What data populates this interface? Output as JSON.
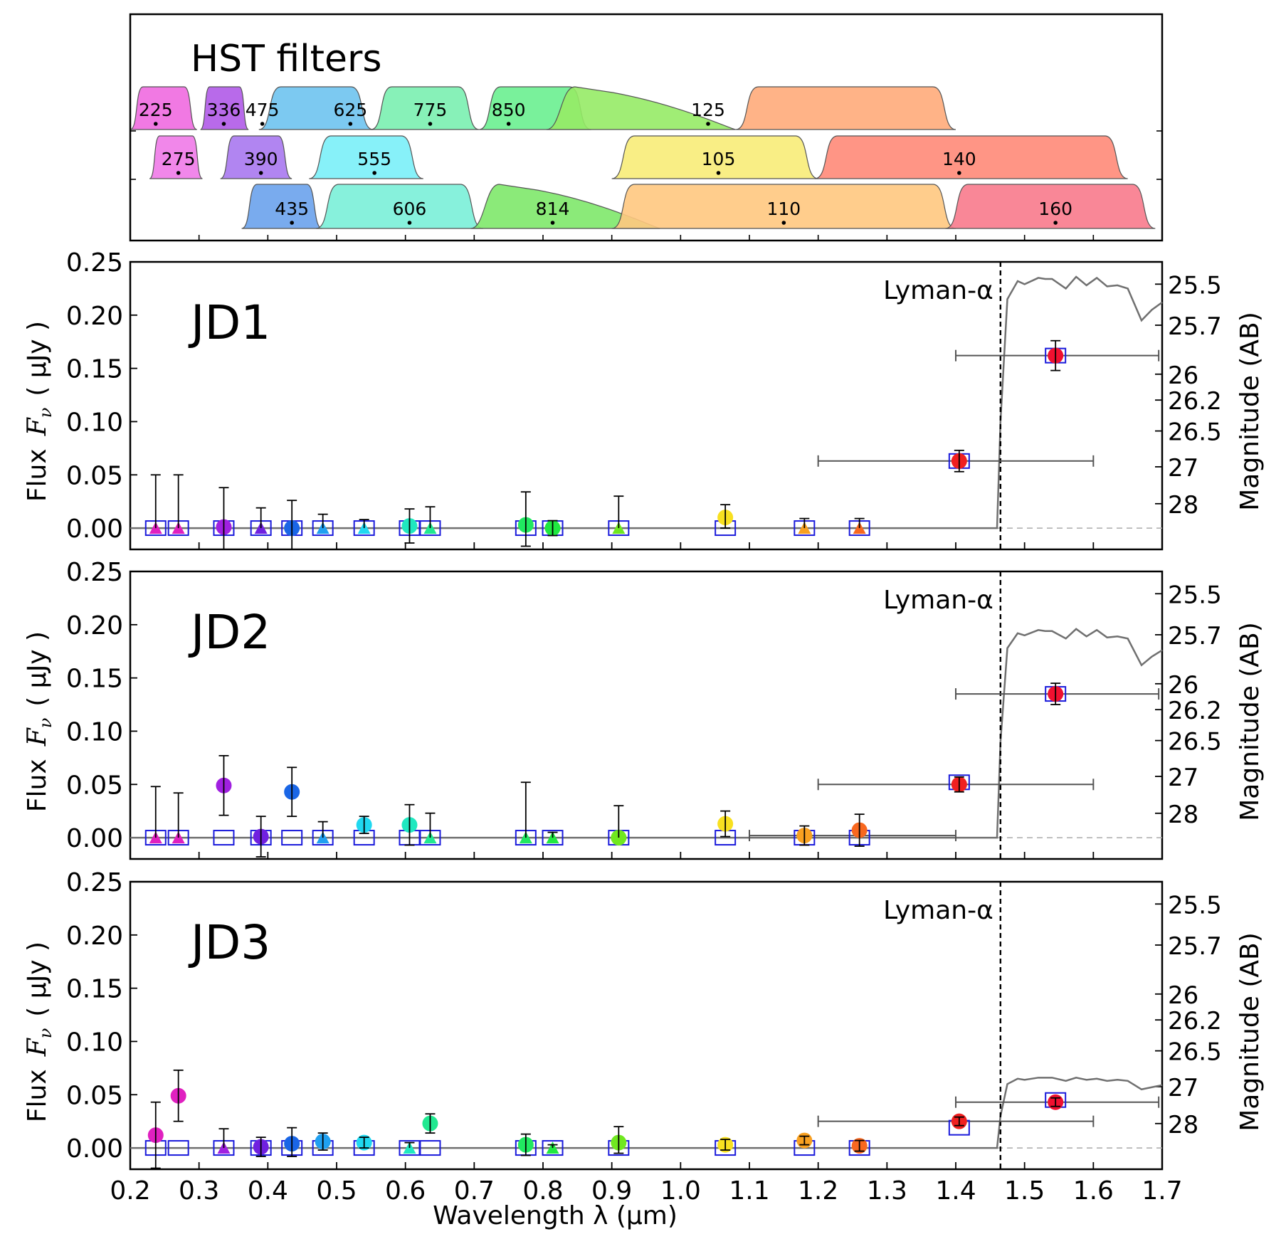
{
  "figure": {
    "filters_title": "HST filters",
    "x_axis_label": "Wavelength  λ (μm)",
    "y_axis_label": "Flux  Fν  ( μJy )",
    "y_axis_label_parts": [
      "Flux",
      "F",
      "ν",
      "( μJy )"
    ],
    "y2_axis_label": "Magnitude (AB)",
    "lyman_label": "Lyman-α",
    "colors": {
      "frame": "#000000",
      "model": "#707070",
      "box": "#1a1adb",
      "errbar": "#000000",
      "hbar": "#555555"
    }
  },
  "chart_data": [
    {
      "type": "area",
      "title": "HST filters",
      "xlim": [
        0.2,
        1.7
      ],
      "rows": [
        [
          {
            "name": "225",
            "center": 0.237,
            "lo": 0.2,
            "hi": 0.297,
            "color": "#f06ae0"
          },
          {
            "name": "336",
            "center": 0.336,
            "lo": 0.302,
            "hi": 0.372,
            "color": "#b05ae8"
          },
          {
            "name": "475",
            "center": 0.392,
            "lo": 0.387,
            "hi": 0.553,
            "color": "#6ec3f0"
          },
          {
            "name": "625",
            "center": 0.52,
            "lo": 0.55,
            "hi": 0.707,
            "color": "#7af0b0"
          },
          {
            "name": "775",
            "center": 0.636,
            "lo": 0.707,
            "hi": 0.87,
            "color": "#6af090"
          },
          {
            "name": "850",
            "center": 0.75,
            "lo": 0.805,
            "hi": 1.08,
            "color": "#96eb66"
          },
          {
            "name": "125",
            "center": 1.04,
            "lo": 1.08,
            "hi": 1.4,
            "color": "#ffab7a"
          }
        ],
        [
          {
            "name": "275",
            "center": 0.27,
            "lo": 0.228,
            "hi": 0.305,
            "color": "#f07ae8"
          },
          {
            "name": "390",
            "center": 0.39,
            "lo": 0.331,
            "hi": 0.435,
            "color": "#a878f0"
          },
          {
            "name": "555",
            "center": 0.555,
            "lo": 0.46,
            "hi": 0.626,
            "color": "#7af0f8"
          },
          {
            "name": "105",
            "center": 1.055,
            "lo": 0.9,
            "hi": 1.2,
            "color": "#f8ec78"
          },
          {
            "name": "140",
            "center": 1.405,
            "lo": 1.195,
            "hi": 1.65,
            "color": "#ff8a78"
          }
        ],
        [
          {
            "name": "435",
            "center": 0.435,
            "lo": 0.362,
            "hi": 0.479,
            "color": "#6aa2ec"
          },
          {
            "name": "606",
            "center": 0.606,
            "lo": 0.47,
            "hi": 0.713,
            "color": "#7af0d8"
          },
          {
            "name": "814",
            "center": 0.814,
            "lo": 0.695,
            "hi": 0.97,
            "color": "#7ee86a"
          },
          {
            "name": "110",
            "center": 1.15,
            "lo": 0.9,
            "hi": 1.4,
            "color": "#ffc880"
          },
          {
            "name": "160",
            "center": 1.545,
            "lo": 1.385,
            "hi": 1.69,
            "color": "#f87a8c"
          }
        ]
      ]
    },
    {
      "type": "scatter",
      "title": "JD1",
      "xlabel": "Wavelength λ (μm)",
      "ylabel": "Flux Fν (μJy)",
      "y2label": "Magnitude (AB)",
      "xlim": [
        0.2,
        1.7
      ],
      "ylim": [
        -0.02,
        0.25
      ],
      "yticks": [
        "0.00",
        "0.05",
        "0.10",
        "0.15",
        "0.20",
        "0.25"
      ],
      "y2ticks": [
        "25.5",
        "25.7",
        "26",
        "26.2",
        "26.5",
        "27",
        "28"
      ],
      "lyman_alpha_um": 1.465,
      "model_sed": {
        "x": [
          0.2,
          1.46,
          1.465,
          1.475,
          1.49,
          1.5,
          1.52,
          1.53,
          1.54,
          1.56,
          1.575,
          1.59,
          1.605,
          1.62,
          1.635,
          1.65,
          1.67,
          1.685,
          1.7
        ],
        "y": [
          0.0,
          0.0,
          0.1,
          0.215,
          0.232,
          0.229,
          0.235,
          0.234,
          0.234,
          0.225,
          0.236,
          0.228,
          0.235,
          0.227,
          0.228,
          0.225,
          0.195,
          0.205,
          0.212
        ]
      },
      "observations": [
        {
          "x": 0.237,
          "y": 0.0,
          "err_hi": 0.05,
          "err_lo": 0.0,
          "marker": "triangle",
          "color": "#e020c0",
          "box_y": 0.0
        },
        {
          "x": 0.27,
          "y": 0.0,
          "err_hi": 0.05,
          "err_lo": 0.0,
          "marker": "triangle",
          "color": "#e020c0",
          "box_y": 0.0
        },
        {
          "x": 0.336,
          "y": 0.001,
          "err_hi": 0.037,
          "err_lo": 0.021,
          "marker": "circle",
          "color": "#a020e0",
          "box_y": 0.0
        },
        {
          "x": 0.39,
          "y": 0.0,
          "err_hi": 0.019,
          "err_lo": 0.0,
          "marker": "triangle",
          "color": "#7020e0",
          "box_y": 0.0
        },
        {
          "x": 0.435,
          "y": 0.0,
          "err_hi": 0.026,
          "err_lo": 0.02,
          "marker": "circle",
          "color": "#1a66e6",
          "box_y": 0.0
        },
        {
          "x": 0.48,
          "y": 0.0,
          "err_hi": 0.013,
          "err_lo": 0.0,
          "marker": "triangle",
          "color": "#20a0f0",
          "box_y": 0.0
        },
        {
          "x": 0.54,
          "y": 0.0,
          "err_hi": 0.008,
          "err_lo": 0.0,
          "marker": "triangle",
          "color": "#20d8f0",
          "box_y": 0.0
        },
        {
          "x": 0.606,
          "y": 0.002,
          "err_hi": 0.016,
          "err_lo": 0.016,
          "marker": "circle",
          "color": "#20e8c0",
          "box_y": 0.0
        },
        {
          "x": 0.636,
          "y": 0.0,
          "err_hi": 0.02,
          "err_lo": 0.0,
          "marker": "triangle",
          "color": "#20e890",
          "box_y": 0.0
        },
        {
          "x": 0.775,
          "y": 0.003,
          "err_hi": 0.031,
          "err_lo": 0.02,
          "marker": "circle",
          "color": "#20e860",
          "box_y": 0.0
        },
        {
          "x": 0.814,
          "y": 0.0,
          "err_hi": 0.007,
          "err_lo": 0.007,
          "marker": "circle",
          "color": "#20e840",
          "box_y": 0.0
        },
        {
          "x": 0.91,
          "y": 0.0,
          "err_hi": 0.03,
          "err_lo": 0.0,
          "marker": "triangle",
          "color": "#70e820",
          "box_y": 0.0
        },
        {
          "x": 1.065,
          "y": 0.01,
          "err_hi": 0.012,
          "err_lo": 0.01,
          "marker": "circle",
          "color": "#f8e020",
          "box_y": 0.0
        },
        {
          "x": 1.18,
          "y": 0.0,
          "err_hi": 0.009,
          "err_lo": 0.0,
          "marker": "triangle",
          "color": "#f8a020",
          "box_y": 0.0
        },
        {
          "x": 1.26,
          "y": 0.0,
          "err_hi": 0.009,
          "err_lo": 0.0,
          "marker": "triangle",
          "color": "#f86820",
          "box_y": 0.0
        },
        {
          "x": 1.405,
          "y": 0.063,
          "err_hi": 0.01,
          "err_lo": 0.01,
          "marker": "circle",
          "color": "#f02020",
          "box_y": 0.063,
          "xerr_lo": 1.2,
          "xerr_hi": 1.6
        },
        {
          "x": 1.545,
          "y": 0.162,
          "err_hi": 0.014,
          "err_lo": 0.014,
          "marker": "circle",
          "color": "#f01030",
          "box_y": 0.162,
          "xerr_lo": 1.4,
          "xerr_hi": 1.695
        }
      ]
    },
    {
      "type": "scatter",
      "title": "JD2",
      "xlim": [
        0.2,
        1.7
      ],
      "ylim": [
        -0.02,
        0.25
      ],
      "yticks": [
        "0.00",
        "0.05",
        "0.10",
        "0.15",
        "0.20",
        "0.25"
      ],
      "y2ticks": [
        "25.5",
        "25.7",
        "26",
        "26.2",
        "26.5",
        "27",
        "28"
      ],
      "lyman_alpha_um": 1.465,
      "model_sed": {
        "x": [
          0.2,
          1.46,
          1.465,
          1.475,
          1.49,
          1.5,
          1.52,
          1.53,
          1.54,
          1.56,
          1.575,
          1.59,
          1.605,
          1.62,
          1.635,
          1.65,
          1.67,
          1.685,
          1.7
        ],
        "y": [
          0.0,
          0.0,
          0.09,
          0.178,
          0.192,
          0.19,
          0.195,
          0.194,
          0.194,
          0.187,
          0.196,
          0.189,
          0.195,
          0.188,
          0.189,
          0.187,
          0.162,
          0.17,
          0.176
        ]
      },
      "observations": [
        {
          "x": 0.237,
          "y": 0.0,
          "err_hi": 0.048,
          "err_lo": 0.0,
          "marker": "triangle",
          "color": "#e020c0",
          "box_y": 0.0
        },
        {
          "x": 0.27,
          "y": 0.0,
          "err_hi": 0.042,
          "err_lo": 0.0,
          "marker": "triangle",
          "color": "#e020c0",
          "box_y": 0.0
        },
        {
          "x": 0.336,
          "y": 0.049,
          "err_hi": 0.028,
          "err_lo": 0.028,
          "marker": "circle",
          "color": "#a020e0",
          "box_y": 0.0
        },
        {
          "x": 0.39,
          "y": 0.001,
          "err_hi": 0.019,
          "err_lo": 0.019,
          "marker": "circle",
          "color": "#7020e0",
          "box_y": 0.0
        },
        {
          "x": 0.435,
          "y": 0.043,
          "err_hi": 0.023,
          "err_lo": 0.023,
          "marker": "circle",
          "color": "#1a66e6",
          "box_y": 0.0
        },
        {
          "x": 0.48,
          "y": 0.0,
          "err_hi": 0.015,
          "err_lo": 0.0,
          "marker": "triangle",
          "color": "#20a0f0",
          "box_y": 0.0
        },
        {
          "x": 0.54,
          "y": 0.012,
          "err_hi": 0.008,
          "err_lo": 0.008,
          "marker": "circle",
          "color": "#20d8f0",
          "box_y": 0.0
        },
        {
          "x": 0.606,
          "y": 0.012,
          "err_hi": 0.019,
          "err_lo": 0.019,
          "marker": "circle",
          "color": "#20e8c0",
          "box_y": 0.0
        },
        {
          "x": 0.636,
          "y": 0.0,
          "err_hi": 0.023,
          "err_lo": 0.0,
          "marker": "triangle",
          "color": "#20e890",
          "box_y": 0.0
        },
        {
          "x": 0.775,
          "y": 0.0,
          "err_hi": 0.052,
          "err_lo": 0.0,
          "marker": "triangle",
          "color": "#20e860",
          "box_y": 0.0
        },
        {
          "x": 0.814,
          "y": 0.0,
          "err_hi": 0.005,
          "err_lo": 0.0,
          "marker": "triangle",
          "color": "#20e840",
          "box_y": 0.0
        },
        {
          "x": 0.91,
          "y": 0.0,
          "err_hi": 0.03,
          "err_lo": 0.0,
          "marker": "circle",
          "color": "#70e820",
          "box_y": 0.0
        },
        {
          "x": 1.065,
          "y": 0.013,
          "err_hi": 0.012,
          "err_lo": 0.012,
          "marker": "circle",
          "color": "#f8e020",
          "box_y": 0.0
        },
        {
          "x": 1.18,
          "y": 0.002,
          "err_hi": 0.009,
          "err_lo": 0.009,
          "marker": "circle",
          "color": "#f8a020",
          "box_y": 0.0,
          "xerr_lo": 1.1,
          "xerr_hi": 1.4
        },
        {
          "x": 1.26,
          "y": 0.007,
          "err_hi": 0.015,
          "err_lo": 0.015,
          "marker": "circle",
          "color": "#f86820",
          "box_y": 0.0
        },
        {
          "x": 1.405,
          "y": 0.05,
          "err_hi": 0.007,
          "err_lo": 0.007,
          "marker": "circle",
          "color": "#f02020",
          "box_y": 0.052,
          "xerr_lo": 1.2,
          "xerr_hi": 1.6
        },
        {
          "x": 1.545,
          "y": 0.135,
          "err_hi": 0.01,
          "err_lo": 0.01,
          "marker": "circle",
          "color": "#f01030",
          "box_y": 0.135,
          "xerr_lo": 1.4,
          "xerr_hi": 1.695
        }
      ]
    },
    {
      "type": "scatter",
      "title": "JD3",
      "xlim": [
        0.2,
        1.7
      ],
      "ylim": [
        -0.02,
        0.25
      ],
      "xticks": [
        "0.2",
        "0.3",
        "0.4",
        "0.5",
        "0.6",
        "0.7",
        "0.8",
        "0.9",
        "1.0",
        "1.1",
        "1.2",
        "1.3",
        "1.4",
        "1.5",
        "1.6",
        "1.7"
      ],
      "yticks": [
        "0.00",
        "0.05",
        "0.10",
        "0.15",
        "0.20",
        "0.25"
      ],
      "y2ticks": [
        "25.5",
        "25.7",
        "26",
        "26.2",
        "26.5",
        "27",
        "28"
      ],
      "lyman_alpha_um": 1.465,
      "model_sed": {
        "x": [
          0.2,
          1.46,
          1.465,
          1.475,
          1.49,
          1.5,
          1.52,
          1.53,
          1.54,
          1.56,
          1.575,
          1.59,
          1.605,
          1.62,
          1.635,
          1.65,
          1.67,
          1.685,
          1.7
        ],
        "y": [
          0.0,
          0.0,
          0.03,
          0.06,
          0.065,
          0.064,
          0.066,
          0.066,
          0.066,
          0.063,
          0.066,
          0.064,
          0.065,
          0.063,
          0.064,
          0.063,
          0.055,
          0.057,
          0.059
        ]
      },
      "observations": [
        {
          "x": 0.237,
          "y": 0.012,
          "err_hi": 0.031,
          "err_lo": 0.031,
          "marker": "circle",
          "color": "#e020c0",
          "box_y": 0.0
        },
        {
          "x": 0.27,
          "y": 0.049,
          "err_hi": 0.024,
          "err_lo": 0.024,
          "marker": "circle",
          "color": "#e020c0",
          "box_y": 0.0
        },
        {
          "x": 0.336,
          "y": 0.0,
          "err_hi": 0.018,
          "err_lo": 0.0,
          "marker": "triangle",
          "color": "#a020e0",
          "box_y": 0.0
        },
        {
          "x": 0.39,
          "y": 0.001,
          "err_hi": 0.009,
          "err_lo": 0.009,
          "marker": "circle",
          "color": "#7020e0",
          "box_y": 0.0
        },
        {
          "x": 0.435,
          "y": 0.004,
          "err_hi": 0.015,
          "err_lo": 0.012,
          "marker": "circle",
          "color": "#1a66e6",
          "box_y": 0.0
        },
        {
          "x": 0.48,
          "y": 0.006,
          "err_hi": 0.008,
          "err_lo": 0.008,
          "marker": "circle",
          "color": "#20a0f0",
          "box_y": 0.0
        },
        {
          "x": 0.54,
          "y": 0.005,
          "err_hi": 0.005,
          "err_lo": 0.005,
          "marker": "circle",
          "color": "#20d8f0",
          "box_y": 0.0
        },
        {
          "x": 0.606,
          "y": 0.0,
          "err_hi": 0.005,
          "err_lo": 0.0,
          "marker": "triangle",
          "color": "#20e8c0",
          "box_y": 0.0
        },
        {
          "x": 0.636,
          "y": 0.023,
          "err_hi": 0.009,
          "err_lo": 0.009,
          "marker": "circle",
          "color": "#20e890",
          "box_y": 0.0
        },
        {
          "x": 0.775,
          "y": 0.003,
          "err_hi": 0.01,
          "err_lo": 0.01,
          "marker": "circle",
          "color": "#20e860",
          "box_y": 0.0
        },
        {
          "x": 0.814,
          "y": 0.0,
          "err_hi": 0.003,
          "err_lo": 0.0,
          "marker": "triangle",
          "color": "#20e840",
          "box_y": 0.0
        },
        {
          "x": 0.91,
          "y": 0.005,
          "err_hi": 0.015,
          "err_lo": 0.01,
          "marker": "circle",
          "color": "#70e820",
          "box_y": 0.0
        },
        {
          "x": 1.065,
          "y": 0.003,
          "err_hi": 0.005,
          "err_lo": 0.005,
          "marker": "circle",
          "color": "#f8e020",
          "box_y": 0.0
        },
        {
          "x": 1.18,
          "y": 0.007,
          "err_hi": 0.004,
          "err_lo": 0.004,
          "marker": "circle",
          "color": "#f8a020",
          "box_y": 0.0
        },
        {
          "x": 1.26,
          "y": 0.002,
          "err_hi": 0.005,
          "err_lo": 0.005,
          "marker": "circle",
          "color": "#f86820",
          "box_y": 0.0
        },
        {
          "x": 1.405,
          "y": 0.025,
          "err_hi": 0.004,
          "err_lo": 0.004,
          "marker": "circle",
          "color": "#f02020",
          "box_y": 0.019,
          "xerr_lo": 1.2,
          "xerr_hi": 1.6
        },
        {
          "x": 1.545,
          "y": 0.043,
          "err_hi": 0.004,
          "err_lo": 0.004,
          "marker": "circle",
          "color": "#f01030",
          "box_y": 0.045,
          "xerr_lo": 1.4,
          "xerr_hi": 1.695
        }
      ]
    }
  ]
}
